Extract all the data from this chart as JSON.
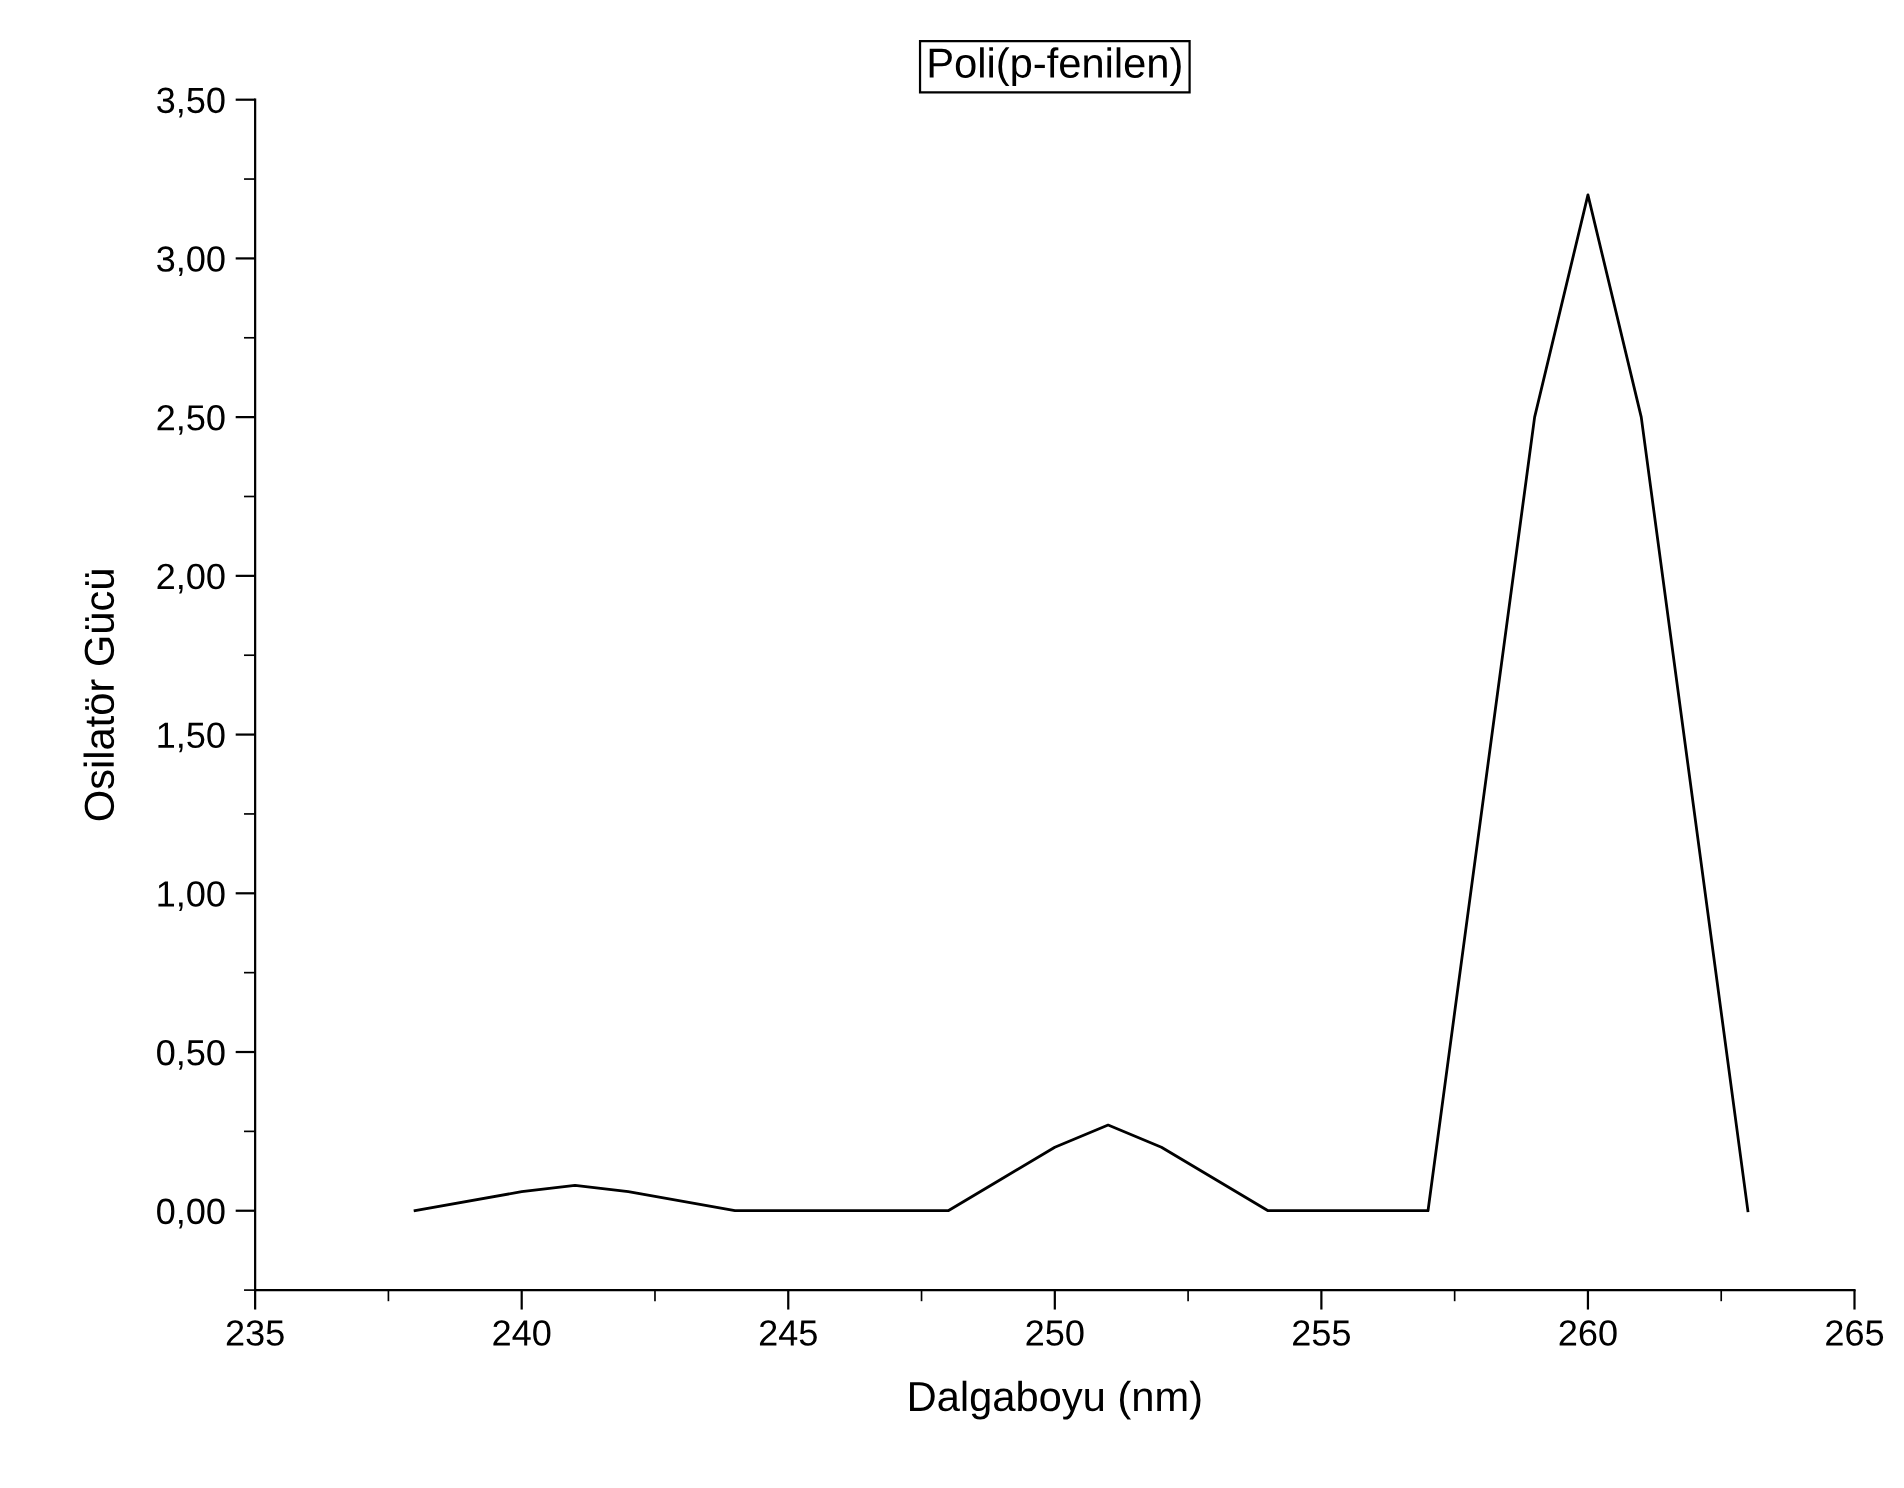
{
  "chart_data": {
    "type": "line",
    "title": "Poli(p-fenilen)",
    "xlabel": "Dalgaboyu (nm)",
    "ylabel": "Osilatör Gücü",
    "x": [
      238,
      240,
      241,
      242,
      244,
      248,
      249,
      250,
      251,
      252,
      253,
      254,
      257,
      259,
      260,
      261,
      263
    ],
    "series": [
      {
        "color": "#000000",
        "values": [
          0,
          0.06,
          0.08,
          0.06,
          0,
          0,
          0.1,
          0.2,
          0.27,
          0.2,
          0.1,
          0,
          0,
          2.5,
          3.2,
          2.5,
          0
        ]
      }
    ],
    "xlim": [
      235,
      265
    ],
    "xticks": [
      235,
      240,
      245,
      250,
      255,
      260,
      265
    ],
    "ylim": [
      -0.25,
      3.5
    ],
    "yticks": [
      {
        "value": 0,
        "label": "0,00"
      },
      {
        "value": 0.5,
        "label": "0,50"
      },
      {
        "value": 1,
        "label": "1,00"
      },
      {
        "value": 1.5,
        "label": "1,50"
      },
      {
        "value": 2,
        "label": "2,00"
      },
      {
        "value": 2.5,
        "label": "2,50"
      },
      {
        "value": 3,
        "label": "3,00"
      },
      {
        "value": 3.5,
        "label": "3,50"
      }
    ],
    "grid": false,
    "marker": "none",
    "line_style": "solid"
  }
}
